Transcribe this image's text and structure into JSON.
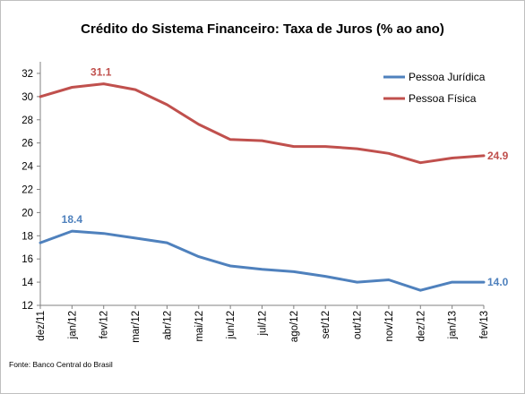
{
  "chart_data": {
    "type": "line",
    "title": "Crédito do Sistema Financeiro: Taxa de Juros  (% ao ano)",
    "categories": [
      "dez/11",
      "jan/12",
      "fev/12",
      "mar/12",
      "abr/12",
      "mai/12",
      "jun/12",
      "jul/12",
      "ago/12",
      "set/12",
      "out/12",
      "nov/12",
      "dez/12",
      "jan/13",
      "fev/13"
    ],
    "series": [
      {
        "name": "Pessoa Jurídica",
        "color": "#4f81bd",
        "values": [
          17.4,
          18.4,
          18.2,
          17.8,
          17.4,
          16.2,
          15.4,
          15.1,
          14.9,
          14.5,
          14.0,
          14.2,
          13.3,
          14.0,
          14.0
        ],
        "labels": [
          {
            "index": 1,
            "text": "18.4"
          },
          {
            "index": 14,
            "text": "14.0"
          }
        ]
      },
      {
        "name": "Pessoa Física",
        "color": "#c0504d",
        "values": [
          30.0,
          30.8,
          31.1,
          30.6,
          29.3,
          27.6,
          26.3,
          26.2,
          25.7,
          25.7,
          25.5,
          25.1,
          24.3,
          24.7,
          24.9
        ],
        "labels": [
          {
            "index": 2,
            "text": "31.1"
          },
          {
            "index": 14,
            "text": "24.9"
          }
        ]
      }
    ],
    "ylim": [
      12,
      33
    ],
    "yticks": [
      "12",
      "14",
      "16",
      "18",
      "20",
      "22",
      "24",
      "26",
      "28",
      "30",
      "32"
    ],
    "xlabel": "",
    "ylabel": "",
    "grid": false,
    "legend_position": "top-right"
  },
  "source": "Fonte: Banco Central do Brasil"
}
